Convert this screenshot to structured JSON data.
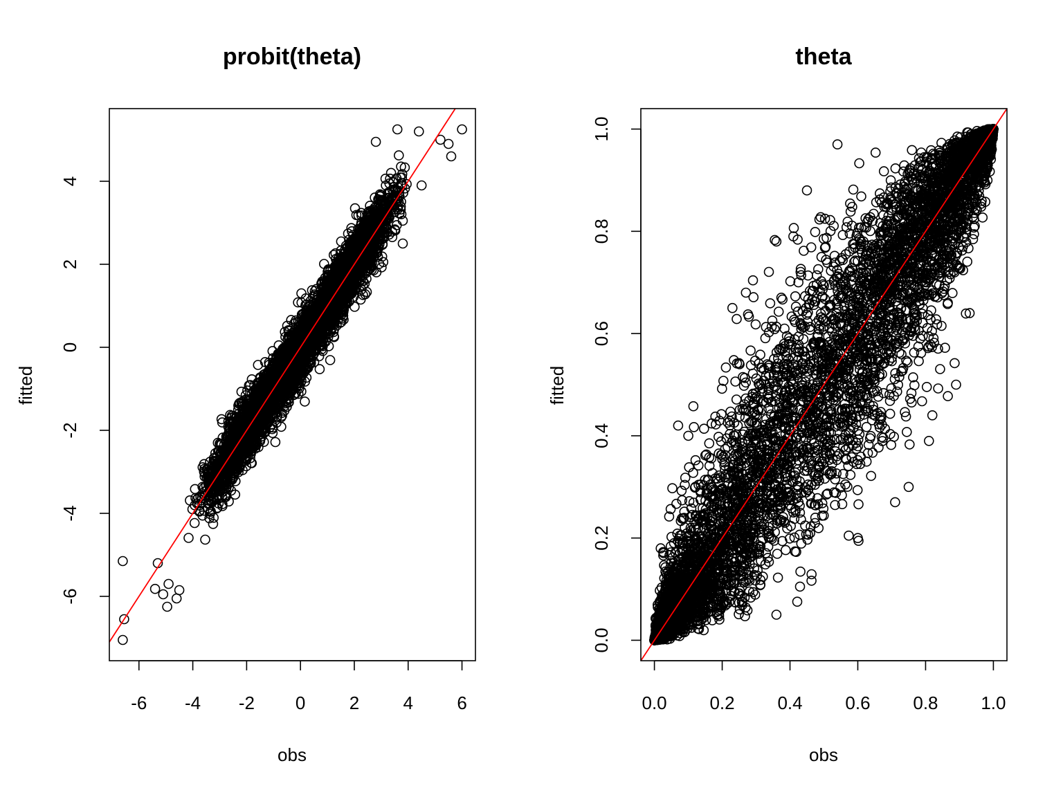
{
  "chart_data": [
    {
      "type": "scatter",
      "title": "probit(theta)",
      "xlabel": "obs",
      "ylabel": "fitted",
      "xlim": [
        -7.1,
        6.5
      ],
      "ylim": [
        -7.55,
        5.75
      ],
      "xticks": [
        -6,
        -4,
        -2,
        0,
        2,
        4,
        6
      ],
      "yticks": [
        -6,
        -4,
        -2,
        0,
        2,
        4
      ],
      "xtick_labels": [
        "-6",
        "-4",
        "-2",
        "0",
        "2",
        "4",
        "6"
      ],
      "ytick_labels": [
        "-6",
        "-4",
        "-2",
        "0",
        "2",
        "4"
      ],
      "grid": false,
      "legend": "none",
      "point_color": "#000000",
      "reference_line": {
        "slope": 1,
        "intercept": 0,
        "color": "#ff0000"
      },
      "main_cloud": {
        "x_range": [
          -4.5,
          4.5
        ],
        "spread_sd": 0.35
      },
      "outliers": [
        {
          "x": -6.6,
          "y": -5.15
        },
        {
          "x": -6.55,
          "y": -6.55
        },
        {
          "x": -6.6,
          "y": -7.05
        },
        {
          "x": -5.4,
          "y": -5.82
        },
        {
          "x": -5.1,
          "y": -5.95
        },
        {
          "x": -4.95,
          "y": -6.25
        },
        {
          "x": -5.3,
          "y": -5.2
        },
        {
          "x": -4.9,
          "y": -5.7
        },
        {
          "x": -4.6,
          "y": -6.05
        },
        {
          "x": -4.5,
          "y": -5.85
        },
        {
          "x": 1.05,
          "y": 1.85
        },
        {
          "x": 2.8,
          "y": 4.95
        },
        {
          "x": 3.6,
          "y": 5.25
        },
        {
          "x": 4.4,
          "y": 5.2
        },
        {
          "x": 5.2,
          "y": 5.0
        },
        {
          "x": 5.5,
          "y": 4.9
        },
        {
          "x": 5.6,
          "y": 4.6
        },
        {
          "x": 6.0,
          "y": 5.25
        },
        {
          "x": 3.8,
          "y": 3.05
        },
        {
          "x": 3.8,
          "y": 2.5
        },
        {
          "x": 4.5,
          "y": 3.9
        }
      ]
    },
    {
      "type": "scatter",
      "title": "theta",
      "xlabel": "obs",
      "ylabel": "fitted",
      "xlim": [
        -0.04,
        1.04
      ],
      "ylim": [
        -0.04,
        1.04
      ],
      "xticks": [
        0.0,
        0.2,
        0.4,
        0.6,
        0.8,
        1.0
      ],
      "yticks": [
        0.0,
        0.2,
        0.4,
        0.6,
        0.8,
        1.0
      ],
      "xtick_labels": [
        "0.0",
        "0.2",
        "0.4",
        "0.6",
        "0.8",
        "1.0"
      ],
      "ytick_labels": [
        "0.0",
        "0.2",
        "0.4",
        "0.6",
        "0.8",
        "1.0"
      ],
      "grid": false,
      "legend": "none",
      "point_color": "#000000",
      "reference_line": {
        "slope": 1,
        "intercept": 0,
        "color": "#ff0000"
      },
      "main_cloud": {
        "x_range": [
          0.0,
          1.0
        ],
        "spread_sd_probit": 0.35
      },
      "outliers": [
        {
          "x": 0.54,
          "y": 0.97
        },
        {
          "x": 0.45,
          "y": 0.88
        },
        {
          "x": 0.36,
          "y": 0.78
        },
        {
          "x": 0.41,
          "y": 0.79
        },
        {
          "x": 0.27,
          "y": 0.68
        },
        {
          "x": 0.23,
          "y": 0.65
        },
        {
          "x": 0.07,
          "y": 0.42
        },
        {
          "x": 0.1,
          "y": 0.4
        },
        {
          "x": 0.82,
          "y": 0.44
        },
        {
          "x": 0.81,
          "y": 0.39
        },
        {
          "x": 0.75,
          "y": 0.3
        },
        {
          "x": 0.71,
          "y": 0.27
        },
        {
          "x": 0.93,
          "y": 0.64
        },
        {
          "x": 0.89,
          "y": 0.5
        },
        {
          "x": 0.6,
          "y": 0.2
        },
        {
          "x": 0.36,
          "y": 0.05
        }
      ]
    }
  ]
}
